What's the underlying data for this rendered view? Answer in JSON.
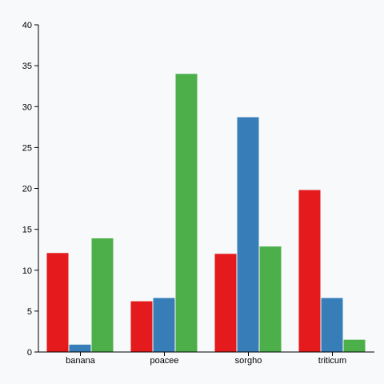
{
  "chart_data": {
    "type": "bar",
    "categories": [
      "banana",
      "poacee",
      "sorgho",
      "triticum"
    ],
    "series": [
      {
        "values": [
          12.1,
          6.2,
          12.0,
          19.8
        ],
        "color": "#e41a1c"
      },
      {
        "values": [
          0.9,
          6.6,
          28.7,
          6.6
        ],
        "color": "#377eb8"
      },
      {
        "values": [
          13.9,
          34.0,
          12.9,
          1.5
        ],
        "color": "#4daf4a"
      }
    ],
    "ylim": [
      0,
      40
    ],
    "yticks": [
      "0",
      "5",
      "10",
      "15",
      "20",
      "25",
      "30",
      "35",
      "40"
    ],
    "grid": false,
    "background": "#f7f9fb"
  }
}
